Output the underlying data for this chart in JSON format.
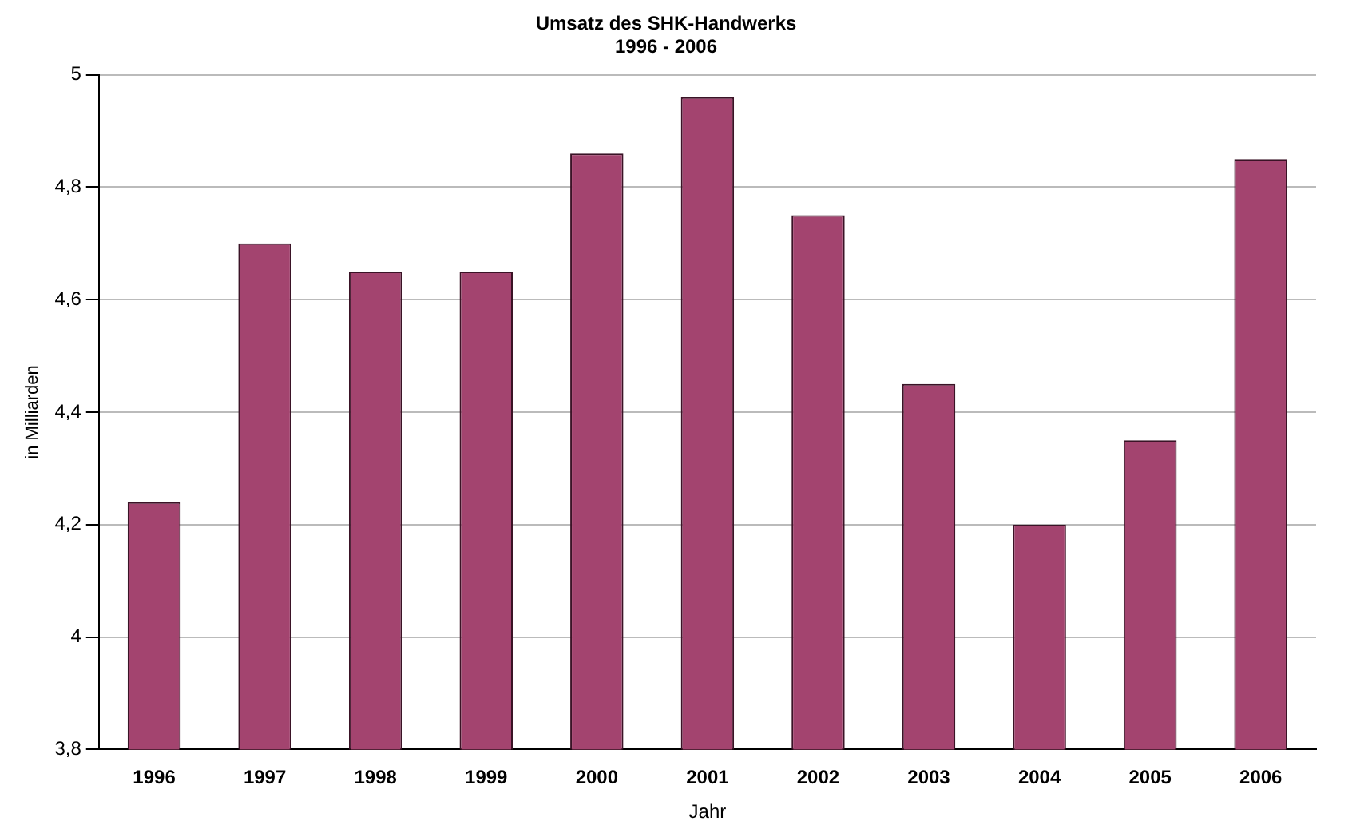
{
  "chart_data": {
    "type": "bar",
    "title": "Umsatz des SHK-Handwerks\n1996 - 2006",
    "xlabel": "Jahr",
    "ylabel": "in Milliarden",
    "categories": [
      "1996",
      "1997",
      "1998",
      "1999",
      "2000",
      "2001",
      "2002",
      "2003",
      "2004",
      "2005",
      "2006"
    ],
    "values": [
      4.24,
      4.7,
      4.65,
      4.65,
      4.86,
      4.96,
      4.75,
      4.45,
      4.2,
      4.35,
      4.85
    ],
    "color": "#a3446f",
    "ylim": [
      3.8,
      5
    ],
    "yticks": [
      {
        "value": 3.8,
        "label": "3,8"
      },
      {
        "value": 4,
        "label": "4"
      },
      {
        "value": 4.2,
        "label": "4,2"
      },
      {
        "value": 4.4,
        "label": "4,4"
      },
      {
        "value": 4.6,
        "label": "4,6"
      },
      {
        "value": 4.8,
        "label": "4,8"
      },
      {
        "value": 5,
        "label": "5"
      }
    ],
    "grid": "y"
  }
}
